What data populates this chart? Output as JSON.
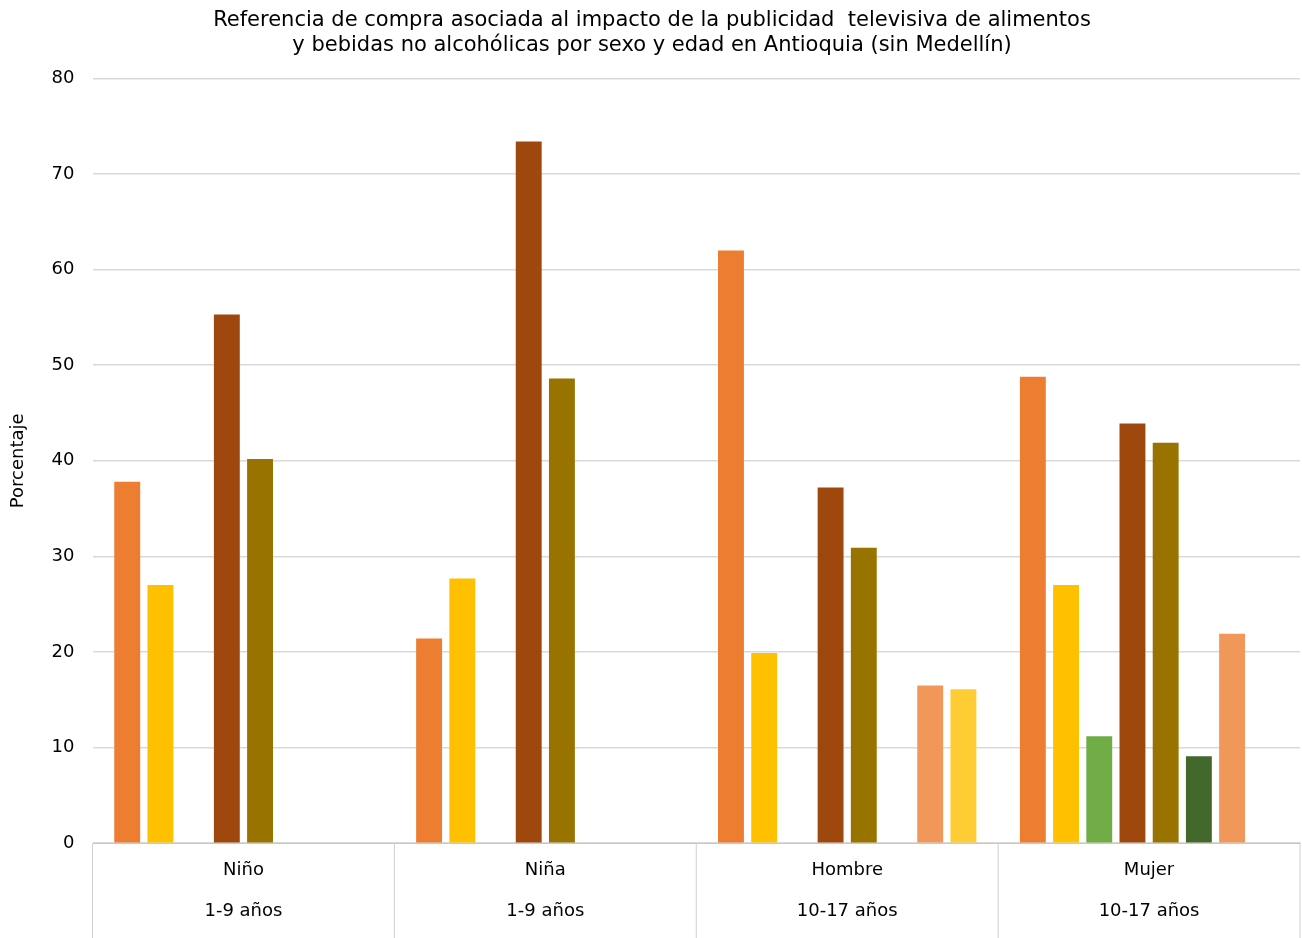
{
  "chart_data": {
    "type": "bar",
    "title": "Referencia de compra asociada al impacto de la publicidad  televisiva de alimentos\ny bebidas no alcohólicas por sexo y edad en Antioquia (sin Medellín)",
    "ylabel": "Porcentaje",
    "categories": [
      "Niño\n1-9 años",
      "Niña\n1-9 años",
      "Hombre\n10-17 años",
      "Mujer\n10-17 años"
    ],
    "series": [
      {
        "color": "#ed7d31",
        "values": [
          37.8,
          21.4,
          62,
          48.8
        ]
      },
      {
        "color": "#ffc000",
        "values": [
          27,
          27.7,
          19.9,
          27
        ]
      },
      {
        "color": "#70ad47",
        "values": [
          null,
          null,
          null,
          11.2
        ]
      },
      {
        "color": "#9e480e",
        "values": [
          55.3,
          73.4,
          37.2,
          43.9
        ]
      },
      {
        "color": "#997300",
        "values": [
          40.2,
          48.6,
          30.9,
          41.9
        ]
      },
      {
        "color": "#43682b",
        "values": [
          null,
          null,
          null,
          9.1
        ]
      },
      {
        "color": "#f1975a",
        "values": [
          null,
          null,
          16.5,
          21.9
        ]
      },
      {
        "color": "#ffcd33",
        "values": [
          null,
          null,
          16.1,
          null
        ]
      }
    ],
    "ylim": [
      0,
      80
    ],
    "yticks": [
      0,
      10,
      20,
      30,
      40,
      50,
      60,
      70,
      80
    ],
    "grid": "y",
    "legend": false
  }
}
